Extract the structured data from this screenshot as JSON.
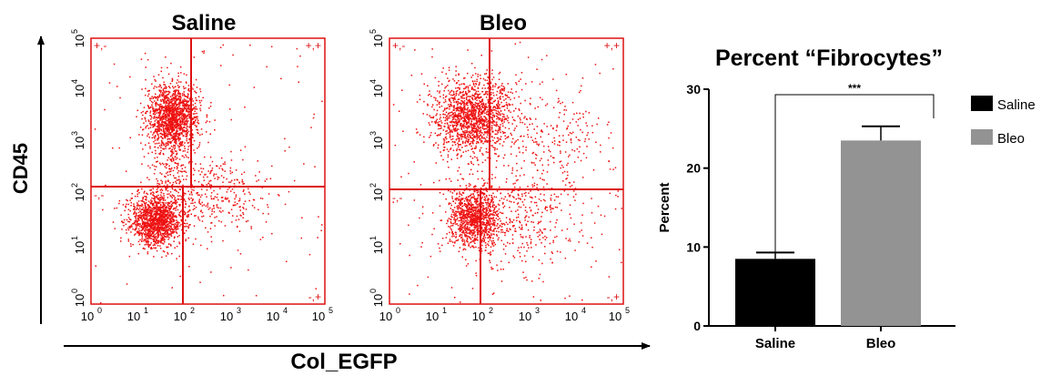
{
  "figure": {
    "y_axis_label": "CD45",
    "x_axis_label": "Col_EGFP"
  },
  "flow_panels": [
    {
      "title": "Saline",
      "x_ticks": [
        "0",
        "1",
        "2",
        "3",
        "4",
        "5"
      ],
      "y_ticks": [
        "0",
        "1",
        "2",
        "3",
        "4",
        "5"
      ],
      "quadrant_labels": [
        "+,-",
        "+,+",
        "-,-",
        "-,+"
      ]
    },
    {
      "title": "Bleo",
      "x_ticks": [
        "0",
        "1",
        "2",
        "3",
        "4",
        "5"
      ],
      "y_ticks": [
        "0",
        "1",
        "2",
        "3",
        "4",
        "5"
      ],
      "quadrant_labels": [
        "+,-",
        "+,+",
        "-,-",
        "-,+"
      ]
    }
  ],
  "colors": {
    "dots": "#ee1111",
    "gate": "#dd1111",
    "saline_bar": "#000000",
    "bleo_bar": "#939393"
  },
  "chart_data": [
    {
      "type": "bar",
      "title": "Percent “Fibrocytes”",
      "categories": [
        "Saline",
        "Bleo"
      ],
      "values": [
        8.5,
        23.5
      ],
      "errors": [
        0.8,
        1.8
      ],
      "ylabel": "Percent",
      "xlabel": "",
      "ylim": [
        0,
        30
      ],
      "yticks": [
        0,
        10,
        20,
        30
      ],
      "legend": [
        "Saline",
        "Bleo"
      ],
      "legend_position": "right",
      "significance": "***",
      "grid": false
    }
  ]
}
